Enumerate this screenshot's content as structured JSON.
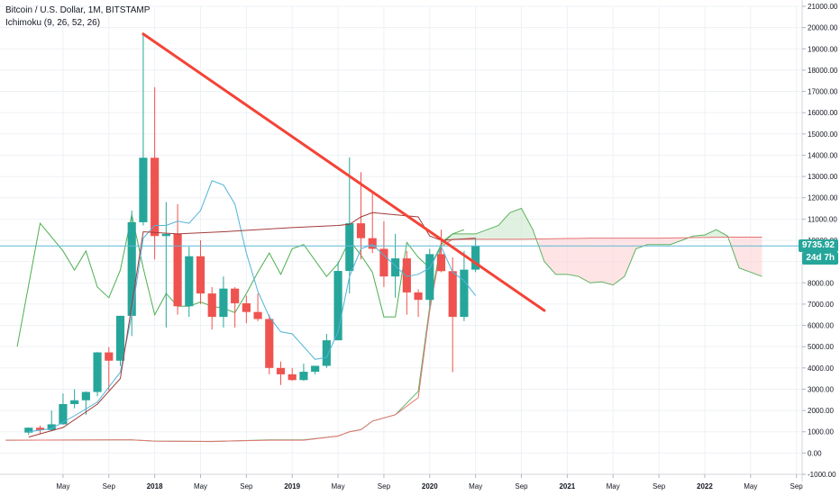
{
  "legend": {
    "symbol": "Bitcoin / U.S. Dollar, 1M, BITSTAMP",
    "indicator": "Ichimoku (9, 26, 52, 26)"
  },
  "price_label": "9735.92",
  "timer_label": "24d 7h",
  "colors": {
    "up": "#26a69a",
    "down": "#ef5350",
    "tenkan": "#4fb3d9",
    "kijun": "#a33a3a",
    "chikou": "#4caf50",
    "span_a": "#5db35f",
    "span_b": "#e57373",
    "cloud_bull": "#c8e6c9",
    "cloud_bear": "#ffcdd2",
    "trendline": "#f44336",
    "price_line": "#5fb8d4",
    "grid": "#eef1f5",
    "axis_text": "#131722"
  },
  "chart_data": {
    "type": "candlestick",
    "title": "Bitcoin / U.S. Dollar, 1M, BITSTAMP",
    "ylim": [
      -1000,
      21000
    ],
    "y_ticks": [
      "-1000.00",
      "0.00",
      "1000.00",
      "2000.00",
      "3000.00",
      "4000.00",
      "5000.00",
      "6000.00",
      "7000.00",
      "8000.00",
      "9000.00",
      "10000.00",
      "11000.00",
      "12000.00",
      "13000.00",
      "14000.00",
      "15000.00",
      "16000.00",
      "17000.00",
      "18000.00",
      "19000.00",
      "20000.00",
      "21000.00"
    ],
    "x_ticks": [
      {
        "label": "May",
        "month": 4
      },
      {
        "label": "Sep",
        "month": 8
      },
      {
        "label": "2018",
        "month": 12
      },
      {
        "label": "May",
        "month": 16
      },
      {
        "label": "Sep",
        "month": 20
      },
      {
        "label": "2019",
        "month": 24
      },
      {
        "label": "May",
        "month": 28
      },
      {
        "label": "Sep",
        "month": 32
      },
      {
        "label": "2020",
        "month": 36
      },
      {
        "label": "May",
        "month": 40
      },
      {
        "label": "Sep",
        "month": 44
      },
      {
        "label": "2021",
        "month": 48
      },
      {
        "label": "May",
        "month": 52
      },
      {
        "label": "Sep",
        "month": 56
      },
      {
        "label": "2022",
        "month": 60
      },
      {
        "label": "May",
        "month": 64
      },
      {
        "label": "Sep",
        "month": 68
      }
    ],
    "candles": [
      {
        "m": 1,
        "o": 960,
        "h": 1200,
        "l": 850,
        "c": 1190
      },
      {
        "m": 2,
        "o": 1190,
        "h": 1290,
        "l": 900,
        "c": 1080
      },
      {
        "m": 3,
        "o": 1080,
        "h": 2000,
        "l": 1060,
        "c": 1350
      },
      {
        "m": 4,
        "o": 1350,
        "h": 2800,
        "l": 1340,
        "c": 2300
      },
      {
        "m": 5,
        "o": 2300,
        "h": 3000,
        "l": 2100,
        "c": 2480
      },
      {
        "m": 6,
        "o": 2480,
        "h": 2900,
        "l": 1800,
        "c": 2870
      },
      {
        "m": 7,
        "o": 2870,
        "h": 4750,
        "l": 2670,
        "c": 4730
      },
      {
        "m": 8,
        "o": 4730,
        "h": 4980,
        "l": 2950,
        "c": 4340
      },
      {
        "m": 9,
        "o": 4340,
        "h": 6450,
        "l": 4100,
        "c": 6450
      },
      {
        "m": 10,
        "o": 6450,
        "h": 11400,
        "l": 5500,
        "c": 10850
      },
      {
        "m": 11,
        "o": 10850,
        "h": 19700,
        "l": 10700,
        "c": 13880
      },
      {
        "m": 12,
        "o": 13880,
        "h": 17200,
        "l": 9100,
        "c": 10200
      },
      {
        "m": 13,
        "o": 10200,
        "h": 11800,
        "l": 5900,
        "c": 10300
      },
      {
        "m": 14,
        "o": 10300,
        "h": 11700,
        "l": 6500,
        "c": 6900
      },
      {
        "m": 15,
        "o": 6900,
        "h": 9700,
        "l": 6400,
        "c": 9250
      },
      {
        "m": 16,
        "o": 9250,
        "h": 10000,
        "l": 7000,
        "c": 7500
      },
      {
        "m": 17,
        "o": 7500,
        "h": 7800,
        "l": 5800,
        "c": 6400
      },
      {
        "m": 18,
        "o": 6400,
        "h": 8300,
        "l": 5900,
        "c": 7730
      },
      {
        "m": 19,
        "o": 7730,
        "h": 7800,
        "l": 5900,
        "c": 7040
      },
      {
        "m": 20,
        "o": 7040,
        "h": 7400,
        "l": 6100,
        "c": 6630
      },
      {
        "m": 21,
        "o": 6630,
        "h": 7500,
        "l": 6200,
        "c": 6300
      },
      {
        "m": 22,
        "o": 6300,
        "h": 6500,
        "l": 3700,
        "c": 4000
      },
      {
        "m": 23,
        "o": 4000,
        "h": 4300,
        "l": 3200,
        "c": 3700
      },
      {
        "m": 24,
        "o": 3700,
        "h": 4000,
        "l": 3400,
        "c": 3430
      },
      {
        "m": 25,
        "o": 3430,
        "h": 4200,
        "l": 3400,
        "c": 3820
      },
      {
        "m": 26,
        "o": 3820,
        "h": 4100,
        "l": 3700,
        "c": 4100
      },
      {
        "m": 27,
        "o": 4100,
        "h": 5600,
        "l": 4000,
        "c": 5300
      },
      {
        "m": 28,
        "o": 5300,
        "h": 9000,
        "l": 5300,
        "c": 8560
      },
      {
        "m": 29,
        "o": 8560,
        "h": 13900,
        "l": 7500,
        "c": 10800
      },
      {
        "m": 30,
        "o": 10800,
        "h": 13200,
        "l": 9100,
        "c": 10100
      },
      {
        "m": 31,
        "o": 10100,
        "h": 12300,
        "l": 9400,
        "c": 9600
      },
      {
        "m": 32,
        "o": 9600,
        "h": 10900,
        "l": 7800,
        "c": 8300
      },
      {
        "m": 33,
        "o": 8300,
        "h": 10300,
        "l": 7300,
        "c": 9150
      },
      {
        "m": 34,
        "o": 9150,
        "h": 9500,
        "l": 6500,
        "c": 7550
      },
      {
        "m": 35,
        "o": 7550,
        "h": 7700,
        "l": 6400,
        "c": 7200
      },
      {
        "m": 36,
        "o": 7200,
        "h": 9600,
        "l": 6900,
        "c": 9350
      },
      {
        "m": 37,
        "o": 9350,
        "h": 10500,
        "l": 8500,
        "c": 8550
      },
      {
        "m": 38,
        "o": 8550,
        "h": 9200,
        "l": 3800,
        "c": 6400
      },
      {
        "m": 39,
        "o": 6400,
        "h": 9500,
        "l": 6200,
        "c": 8620
      },
      {
        "m": 40,
        "o": 8620,
        "h": 10100,
        "l": 8500,
        "c": 9735
      }
    ],
    "tenkan": [
      [
        1,
        1000
      ],
      [
        3,
        1150
      ],
      [
        5,
        1750
      ],
      [
        7,
        2400
      ],
      [
        9,
        3800
      ],
      [
        10,
        6500
      ],
      [
        11,
        10100
      ],
      [
        12,
        10700
      ],
      [
        13,
        10700
      ],
      [
        14,
        10900
      ],
      [
        15,
        10800
      ],
      [
        16,
        11400
      ],
      [
        17,
        12800
      ],
      [
        18,
        12600
      ],
      [
        19,
        11700
      ],
      [
        20,
        9400
      ],
      [
        21,
        7600
      ],
      [
        22,
        6400
      ],
      [
        23,
        5700
      ],
      [
        24,
        5600
      ],
      [
        26,
        4400
      ],
      [
        27,
        4500
      ],
      [
        28,
        5700
      ],
      [
        29,
        8300
      ],
      [
        30,
        9600
      ],
      [
        31,
        9800
      ],
      [
        33,
        8800
      ],
      [
        34,
        8300
      ],
      [
        35,
        8400
      ],
      [
        36,
        8700
      ],
      [
        37,
        9700
      ],
      [
        38,
        8500
      ],
      [
        39,
        8100
      ],
      [
        40,
        7400
      ]
    ],
    "kijun": [
      [
        1,
        750
      ],
      [
        4,
        1200
      ],
      [
        7,
        2300
      ],
      [
        9,
        3500
      ],
      [
        11,
        10400
      ],
      [
        14,
        10300
      ],
      [
        18,
        10400
      ],
      [
        24,
        10600
      ],
      [
        28,
        10700
      ],
      [
        29,
        10750
      ],
      [
        30,
        11100
      ],
      [
        31,
        11300
      ],
      [
        33,
        11200
      ],
      [
        35,
        11100
      ],
      [
        36,
        10200
      ],
      [
        37,
        10000
      ],
      [
        40,
        10100
      ]
    ],
    "chikou": [
      [
        0,
        5000
      ],
      [
        2,
        10800
      ],
      [
        4,
        9500
      ],
      [
        5,
        8600
      ],
      [
        6,
        9500
      ],
      [
        7,
        7800
      ],
      [
        8,
        7300
      ],
      [
        9,
        8600
      ],
      [
        10,
        11200
      ],
      [
        11,
        8700
      ],
      [
        12,
        6500
      ],
      [
        13,
        7500
      ],
      [
        14,
        6900
      ],
      [
        15,
        6900
      ],
      [
        16,
        7100
      ],
      [
        17,
        6900
      ],
      [
        18,
        6800
      ],
      [
        19,
        6600
      ],
      [
        20,
        7500
      ],
      [
        21,
        8500
      ],
      [
        22,
        9400
      ],
      [
        23,
        8400
      ],
      [
        24,
        9600
      ],
      [
        25,
        9800
      ],
      [
        27,
        8300
      ],
      [
        28,
        8900
      ],
      [
        29,
        10000
      ],
      [
        30,
        9300
      ],
      [
        31,
        8500
      ],
      [
        32,
        6400
      ],
      [
        33,
        6400
      ],
      [
        34,
        9900
      ],
      [
        35,
        9200
      ],
      [
        36,
        8700
      ],
      [
        37,
        9800
      ],
      [
        38,
        10300
      ],
      [
        39,
        10500
      ]
    ],
    "span_a": [
      [
        -1,
        600
      ],
      [
        10,
        620
      ],
      [
        12,
        560
      ],
      [
        17,
        540
      ],
      [
        22,
        620
      ],
      [
        25,
        620
      ],
      [
        28,
        800
      ],
      [
        29,
        1000
      ],
      [
        30,
        1100
      ],
      [
        31,
        1500
      ],
      [
        33,
        1800
      ],
      [
        35,
        2900
      ],
      [
        36,
        6900
      ],
      [
        37,
        9900
      ],
      [
        38,
        10300
      ],
      [
        40,
        10300
      ],
      [
        41,
        10500
      ],
      [
        42,
        10700
      ],
      [
        43,
        11300
      ],
      [
        44,
        11500
      ],
      [
        45,
        10500
      ],
      [
        46,
        9000
      ],
      [
        47,
        8400
      ],
      [
        48,
        8400
      ],
      [
        49,
        8300
      ],
      [
        50,
        8000
      ],
      [
        51,
        8050
      ],
      [
        52,
        7900
      ],
      [
        53,
        8300
      ],
      [
        54,
        9600
      ],
      [
        55,
        9800
      ],
      [
        57,
        9800
      ],
      [
        58,
        10000
      ],
      [
        59,
        10200
      ],
      [
        60,
        10250
      ],
      [
        61,
        10500
      ],
      [
        62,
        10200
      ],
      [
        63,
        8700
      ],
      [
        64,
        8500
      ],
      [
        65,
        8300
      ]
    ],
    "span_b": [
      [
        -1,
        600
      ],
      [
        10,
        620
      ],
      [
        12,
        560
      ],
      [
        17,
        550
      ],
      [
        22,
        600
      ],
      [
        25,
        600
      ],
      [
        28,
        800
      ],
      [
        29,
        1000
      ],
      [
        30,
        1100
      ],
      [
        31,
        1500
      ],
      [
        33,
        1800
      ],
      [
        35,
        2600
      ],
      [
        36,
        6700
      ],
      [
        37,
        9700
      ],
      [
        38,
        10050
      ],
      [
        44,
        10050
      ],
      [
        50,
        10100
      ],
      [
        56,
        10100
      ],
      [
        62,
        10150
      ],
      [
        65,
        10150
      ]
    ],
    "trendline": [
      [
        11,
        19700
      ],
      [
        46,
        6700
      ]
    ],
    "last_price": 9735.92,
    "last_month": 40,
    "x_range": [
      -1.5,
      68.5
    ]
  }
}
